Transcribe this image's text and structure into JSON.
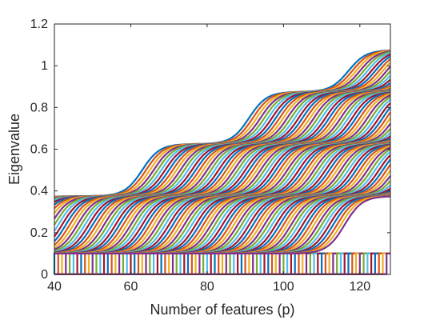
{
  "chart_data": {
    "type": "line",
    "title": "",
    "xlabel": "Number of features (p)",
    "ylabel": "Eigenvalue",
    "xlim": [
      40,
      128
    ],
    "ylim": [
      0,
      1.2
    ],
    "xticks": [
      "40",
      "60",
      "80",
      "100",
      "120"
    ],
    "yticks": [
      "0",
      "0.2",
      "0.4",
      "0.6",
      "0.8",
      "1",
      "1.2"
    ],
    "grid": false,
    "legend": "none",
    "colors": [
      "#0072BD",
      "#D95319",
      "#EDB120",
      "#7E2F8E",
      "#77AC30",
      "#4DBEEE",
      "#A2142F"
    ],
    "series_summary": {
      "count": 88,
      "upper_plateau": 1.1,
      "middle_plateaus": [
        0.6,
        0.85
      ],
      "low_plateaus": [
        0.35
      ],
      "zero_band_top": 0.1,
      "series_transition_spacing_p": 1
    }
  }
}
